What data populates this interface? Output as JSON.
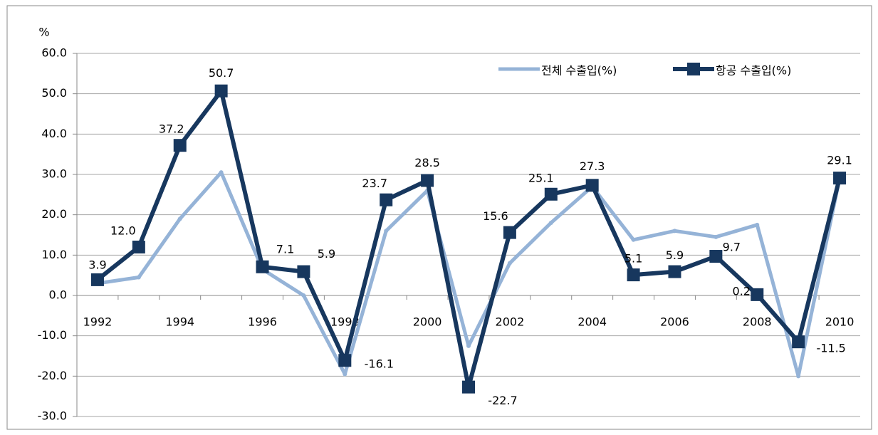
{
  "chart_data": {
    "type": "line",
    "y_label": "%",
    "categories": [
      "1992",
      null,
      "1994",
      null,
      "1996",
      null,
      "1998",
      null,
      "2000",
      null,
      "2002",
      null,
      "2004",
      null,
      "2006",
      null,
      "2008",
      null,
      "2010"
    ],
    "series": [
      {
        "name": "전체 수출입(%)",
        "color": "#95b3d7",
        "values": [
          3,
          4.5,
          19,
          30.5,
          6.5,
          0,
          -19.5,
          16,
          26,
          -12.5,
          8,
          18,
          27,
          13.8,
          16,
          14.5,
          17.5,
          -20,
          29
        ]
      },
      {
        "name": "항공 수출입(%)",
        "color": "#17375e",
        "marker": "square",
        "values": [
          3.9,
          12.0,
          37.2,
          50.7,
          7.1,
          5.9,
          -16.1,
          23.7,
          28.5,
          -22.7,
          15.6,
          25.1,
          27.3,
          5.1,
          5.9,
          9.7,
          0.2,
          -11.5,
          29.1
        ],
        "value_labels": [
          "3.9",
          "12.0",
          "37.2",
          "50.7",
          "7.1",
          "5.9",
          "-16.1",
          "23.7",
          "28.5",
          "-22.7",
          "15.6",
          "25.1",
          "27.3",
          "5.1",
          "5.9",
          "9.7",
          "0.2",
          "-11.5",
          "29.1"
        ]
      }
    ],
    "ylim": [
      -30,
      60
    ],
    "yticks": [
      {
        "value": -30,
        "label": "-30.0"
      },
      {
        "value": -20,
        "label": "-20.0"
      },
      {
        "value": -10,
        "label": "-10.0"
      },
      {
        "value": 0,
        "label": "0.0"
      },
      {
        "value": 10,
        "label": "10.0"
      },
      {
        "value": 20,
        "label": "20.0"
      },
      {
        "value": 30,
        "label": "30.0"
      },
      {
        "value": 40,
        "label": "40.0"
      },
      {
        "value": 50,
        "label": "50.0"
      },
      {
        "value": 60,
        "label": "60.0"
      }
    ],
    "grid": true,
    "legend": "top-right"
  }
}
